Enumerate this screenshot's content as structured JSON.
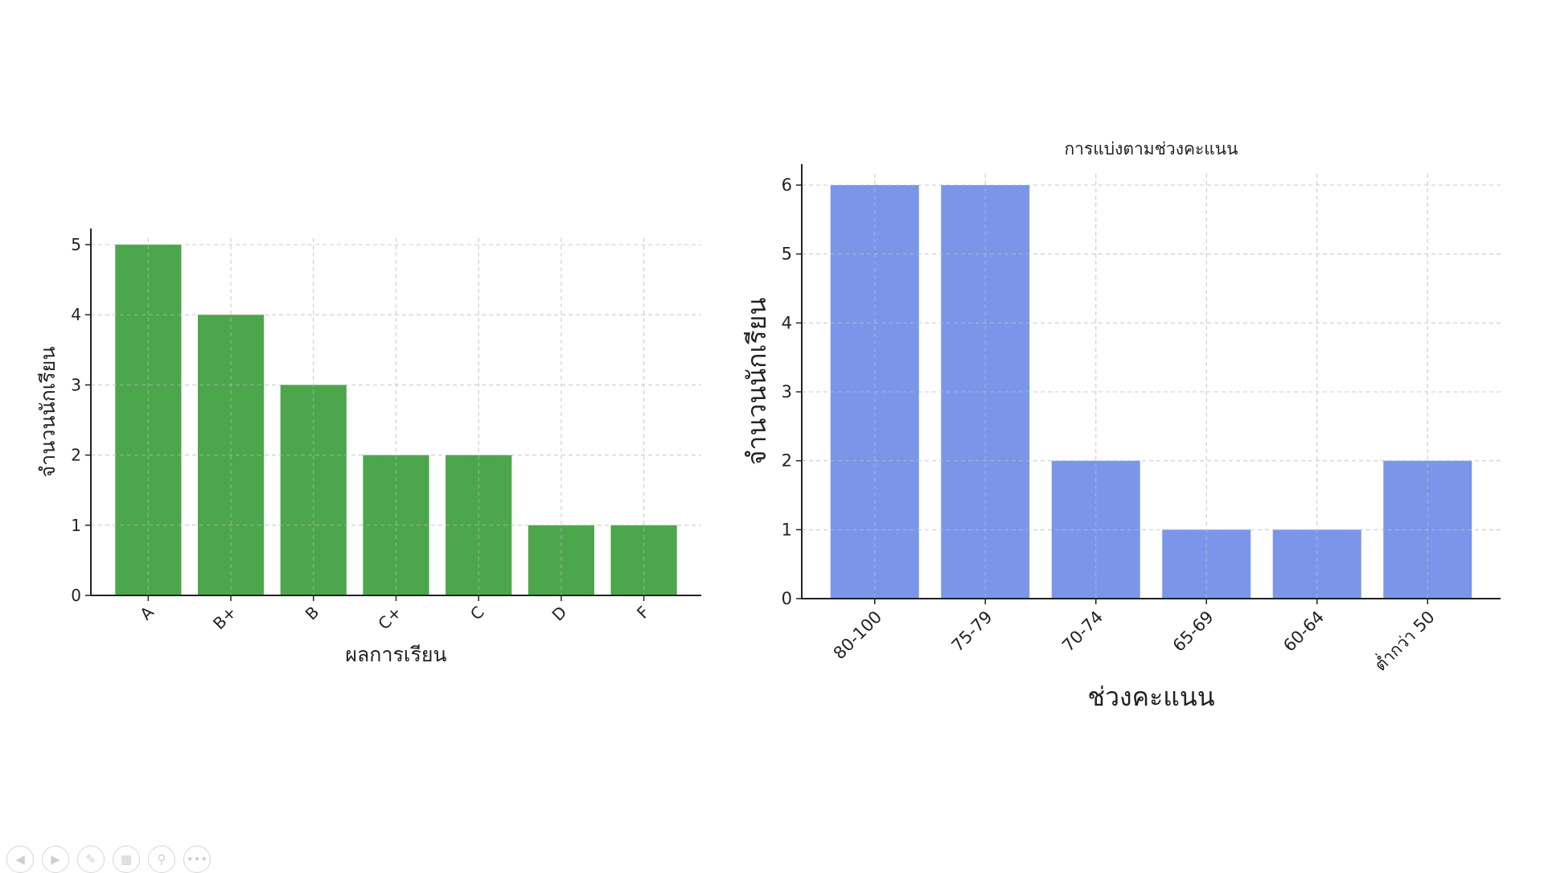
{
  "chart_data": [
    {
      "type": "bar",
      "title": "",
      "xlabel": "ผลการเรียน",
      "ylabel": "จำนวนนักเรียน",
      "categories": [
        "A",
        "B+",
        "B",
        "C+",
        "C",
        "D",
        "F"
      ],
      "values": [
        5,
        4,
        3,
        2,
        2,
        1,
        1
      ],
      "ylim": [
        0,
        5
      ],
      "yticks": [
        0,
        1,
        2,
        3,
        4,
        5
      ],
      "color": "#4ca64c",
      "grid": true
    },
    {
      "type": "bar",
      "title": "การแบ่งตามช่วงคะแนน",
      "xlabel": "ช่วงคะแนน",
      "ylabel": "จำนวนนักเรียน",
      "categories": [
        "80-100",
        "75-79",
        "70-74",
        "65-69",
        "60-64",
        "ต่ำกว่า 50"
      ],
      "values": [
        6,
        6,
        2,
        1,
        1,
        2
      ],
      "ylim": [
        0,
        6
      ],
      "yticks": [
        0,
        1,
        2,
        3,
        4,
        5,
        6
      ],
      "color": "#7b96e8",
      "grid": true
    }
  ],
  "toolbar": {
    "icons": [
      "prev-icon",
      "next-icon",
      "pen-icon",
      "slides-icon",
      "zoom-icon",
      "more-icon"
    ],
    "glyphs": [
      "◀",
      "▶",
      "✎",
      "▦",
      "⚲",
      "•••"
    ]
  }
}
